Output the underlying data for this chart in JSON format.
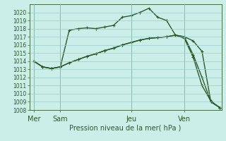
{
  "title": "Pression niveau de la mer( hPa )",
  "background_color": "#cceee8",
  "grid_color": "#99cccc",
  "line_color": "#2d5a27",
  "ylim": [
    1008,
    1021
  ],
  "yticks": [
    1008,
    1009,
    1010,
    1011,
    1012,
    1013,
    1014,
    1015,
    1016,
    1017,
    1018,
    1019,
    1020
  ],
  "xtick_labels": [
    "Mer",
    "Sam",
    "Jeu",
    "Ven"
  ],
  "xtick_positions": [
    0,
    3,
    11,
    17
  ],
  "vline_positions": [
    0,
    3,
    11,
    17
  ],
  "total_points": 22,
  "x_max": 21,
  "series1_x": [
    0,
    1,
    2,
    3,
    4,
    5,
    6,
    7,
    8,
    9,
    10,
    11,
    12,
    13,
    14,
    15,
    16,
    17,
    18,
    19,
    20,
    21
  ],
  "series1_y": [
    1014.0,
    1013.3,
    1013.1,
    1013.3,
    1017.8,
    1018.0,
    1018.1,
    1018.0,
    1018.2,
    1018.4,
    1019.4,
    1019.6,
    1020.0,
    1020.5,
    1019.4,
    1019.0,
    1017.2,
    1017.0,
    1016.5,
    1015.2,
    1009.0,
    1008.3
  ],
  "series2_x": [
    0,
    1,
    2,
    3,
    4,
    5,
    6,
    7,
    8,
    9,
    10,
    11,
    12,
    13,
    14,
    15,
    16,
    17,
    18,
    19,
    20,
    21
  ],
  "series2_y": [
    1014.0,
    1013.3,
    1013.1,
    1013.3,
    1013.8,
    1014.2,
    1014.6,
    1014.9,
    1015.3,
    1015.6,
    1016.0,
    1016.3,
    1016.6,
    1016.8,
    1016.9,
    1017.0,
    1017.2,
    1017.0,
    1014.8,
    1012.0,
    1009.0,
    1008.3
  ],
  "series3_x": [
    0,
    1,
    2,
    3,
    4,
    5,
    6,
    7,
    8,
    9,
    10,
    11,
    12,
    13,
    14,
    15,
    16,
    17,
    18,
    19,
    20,
    21
  ],
  "series3_y": [
    1014.0,
    1013.3,
    1013.1,
    1013.3,
    1013.8,
    1014.2,
    1014.6,
    1014.9,
    1015.3,
    1015.6,
    1016.0,
    1016.3,
    1016.6,
    1016.8,
    1016.9,
    1017.0,
    1017.2,
    1016.8,
    1014.5,
    1011.0,
    1009.1,
    1008.3
  ],
  "ylabel_fontsize": 5.5,
  "xlabel_fontsize": 7,
  "linewidth": 1.0,
  "markersize": 2.5
}
